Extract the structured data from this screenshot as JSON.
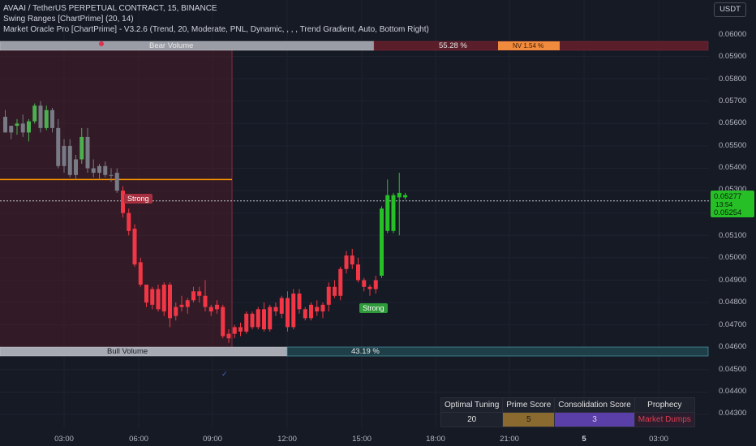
{
  "legend": {
    "symbol_line": "AVAAI / TetherUS PERPETUAL CONTRACT, 15, BINANCE",
    "indicator1": "Swing Ranges [ChartPrime] (20, 14)",
    "indicator2": "Market Oracle Pro [ChartPrime] - V3.2.6 (Trend, 20, Moderate, PNL, Dynamic, , , , Trend Gradient, Auto, Bottom Right)"
  },
  "currency_button": "USDT",
  "price_axis": {
    "labels": [
      "0.06000",
      "0.05900",
      "0.05800",
      "0.05700",
      "0.05600",
      "0.05500",
      "0.05400",
      "0.05300",
      "0.05100",
      "0.05000",
      "0.04900",
      "0.04800",
      "0.04700",
      "0.04600",
      "0.04500",
      "0.04400",
      "0.04300"
    ]
  },
  "current_price": {
    "price": "0.05277",
    "countdown": "13:54",
    "low_label": "0.05254"
  },
  "time_axis": {
    "labels": [
      {
        "text": "03:00",
        "bold": false
      },
      {
        "text": "06:00",
        "bold": false
      },
      {
        "text": "09:00",
        "bold": false
      },
      {
        "text": "12:00",
        "bold": false
      },
      {
        "text": "15:00",
        "bold": false
      },
      {
        "text": "18:00",
        "bold": false
      },
      {
        "text": "21:00",
        "bold": false
      },
      {
        "text": "5",
        "bold": true
      },
      {
        "text": "03:00",
        "bold": false
      }
    ]
  },
  "volume_bars": {
    "bear_label": "Bear Volume",
    "bear_pct": "55.28 %",
    "nv_label": "NV 1.54 %",
    "bull_label": "Bull Volume",
    "bull_pct": "43.19 %"
  },
  "signals": {
    "bear_strong": "Strong",
    "bull_strong": "Strong"
  },
  "info_table": {
    "headers": [
      "Optimal Tuning",
      "Prime Score",
      "Consolidation  Score",
      "Prophecy"
    ],
    "values": [
      "20",
      "5",
      "3",
      "Market Dumps"
    ]
  },
  "colors": {
    "bull": "#4caf50",
    "bear": "#f23645",
    "neutral": "#787b86",
    "bright_green": "#26c026",
    "bright_red": "#e8243c",
    "orange_line": "#ff9800"
  },
  "chart_data": {
    "type": "candlestick",
    "candles": [
      {
        "o": 0.0563,
        "h": 0.0566,
        "l": 0.0556,
        "c": 0.0556,
        "col": "neutral"
      },
      {
        "o": 0.0556,
        "h": 0.0559,
        "l": 0.0553,
        "c": 0.0559,
        "col": "neutral"
      },
      {
        "o": 0.0559,
        "h": 0.0562,
        "l": 0.0555,
        "c": 0.056,
        "col": "bull"
      },
      {
        "o": 0.056,
        "h": 0.0564,
        "l": 0.0554,
        "c": 0.0556,
        "col": "neutral"
      },
      {
        "o": 0.0556,
        "h": 0.0562,
        "l": 0.0552,
        "c": 0.0561,
        "col": "bull"
      },
      {
        "o": 0.0561,
        "h": 0.0569,
        "l": 0.056,
        "c": 0.0568,
        "col": "bull"
      },
      {
        "o": 0.0568,
        "h": 0.057,
        "l": 0.0556,
        "c": 0.0558,
        "col": "neutral"
      },
      {
        "o": 0.0558,
        "h": 0.0568,
        "l": 0.0557,
        "c": 0.0566,
        "col": "bull"
      },
      {
        "o": 0.0566,
        "h": 0.0567,
        "l": 0.0556,
        "c": 0.0558,
        "col": "neutral"
      },
      {
        "o": 0.0558,
        "h": 0.0562,
        "l": 0.054,
        "c": 0.0541,
        "col": "neutral"
      },
      {
        "o": 0.0541,
        "h": 0.0553,
        "l": 0.0538,
        "c": 0.055,
        "col": "neutral"
      },
      {
        "o": 0.055,
        "h": 0.0553,
        "l": 0.0536,
        "c": 0.0537,
        "col": "neutral"
      },
      {
        "o": 0.0537,
        "h": 0.0546,
        "l": 0.0535,
        "c": 0.0544,
        "col": "neutral"
      },
      {
        "o": 0.0544,
        "h": 0.0558,
        "l": 0.0542,
        "c": 0.0554,
        "col": "bull"
      },
      {
        "o": 0.0554,
        "h": 0.0558,
        "l": 0.0538,
        "c": 0.054,
        "col": "neutral"
      },
      {
        "o": 0.054,
        "h": 0.0544,
        "l": 0.0536,
        "c": 0.0538,
        "col": "neutral"
      },
      {
        "o": 0.0538,
        "h": 0.0542,
        "l": 0.0535,
        "c": 0.0541,
        "col": "neutral"
      },
      {
        "o": 0.0541,
        "h": 0.0543,
        "l": 0.0536,
        "c": 0.0537,
        "col": "neutral"
      },
      {
        "o": 0.0537,
        "h": 0.054,
        "l": 0.0534,
        "c": 0.0537,
        "col": "neutral"
      },
      {
        "o": 0.0538,
        "h": 0.054,
        "l": 0.0529,
        "c": 0.053,
        "col": "neutral"
      },
      {
        "o": 0.053,
        "h": 0.0532,
        "l": 0.0518,
        "c": 0.052,
        "col": "bear"
      },
      {
        "o": 0.052,
        "h": 0.0522,
        "l": 0.051,
        "c": 0.0512,
        "col": "bear"
      },
      {
        "o": 0.0513,
        "h": 0.0515,
        "l": 0.0496,
        "c": 0.0497,
        "col": "bear"
      },
      {
        "o": 0.0498,
        "h": 0.05,
        "l": 0.0487,
        "c": 0.0488,
        "col": "bear"
      },
      {
        "o": 0.0488,
        "h": 0.0488,
        "l": 0.0478,
        "c": 0.048,
        "col": "bear"
      },
      {
        "o": 0.0479,
        "h": 0.0487,
        "l": 0.0477,
        "c": 0.0486,
        "col": "bear"
      },
      {
        "o": 0.0486,
        "h": 0.0488,
        "l": 0.0476,
        "c": 0.0477,
        "col": "bear"
      },
      {
        "o": 0.0476,
        "h": 0.0489,
        "l": 0.0474,
        "c": 0.0488,
        "col": "bear"
      },
      {
        "o": 0.0488,
        "h": 0.0489,
        "l": 0.0469,
        "c": 0.0473,
        "col": "bear"
      },
      {
        "o": 0.0474,
        "h": 0.048,
        "l": 0.0472,
        "c": 0.0478,
        "col": "bear"
      },
      {
        "o": 0.0478,
        "h": 0.0483,
        "l": 0.0476,
        "c": 0.0479,
        "col": "bear"
      },
      {
        "o": 0.0478,
        "h": 0.0482,
        "l": 0.0475,
        "c": 0.0481,
        "col": "bear"
      },
      {
        "o": 0.0481,
        "h": 0.0487,
        "l": 0.048,
        "c": 0.0485,
        "col": "bear"
      },
      {
        "o": 0.0485,
        "h": 0.0487,
        "l": 0.048,
        "c": 0.0483,
        "col": "bear"
      },
      {
        "o": 0.0483,
        "h": 0.049,
        "l": 0.0476,
        "c": 0.0478,
        "col": "bear"
      },
      {
        "o": 0.0478,
        "h": 0.0479,
        "l": 0.0474,
        "c": 0.0476,
        "col": "bear"
      },
      {
        "o": 0.0477,
        "h": 0.0481,
        "l": 0.0475,
        "c": 0.0479,
        "col": "bear"
      },
      {
        "o": 0.0478,
        "h": 0.0479,
        "l": 0.0464,
        "c": 0.0465,
        "col": "bear"
      },
      {
        "o": 0.0464,
        "h": 0.0468,
        "l": 0.0462,
        "c": 0.0466,
        "col": "bear"
      },
      {
        "o": 0.0466,
        "h": 0.047,
        "l": 0.0464,
        "c": 0.0469,
        "col": "bear"
      },
      {
        "o": 0.0469,
        "h": 0.0471,
        "l": 0.0465,
        "c": 0.0467,
        "col": "bear"
      },
      {
        "o": 0.0467,
        "h": 0.0476,
        "l": 0.0466,
        "c": 0.0475,
        "col": "bear"
      },
      {
        "o": 0.0475,
        "h": 0.0476,
        "l": 0.0468,
        "c": 0.0469,
        "col": "bear"
      },
      {
        "o": 0.0469,
        "h": 0.0478,
        "l": 0.0468,
        "c": 0.0477,
        "col": "bear"
      },
      {
        "o": 0.0477,
        "h": 0.048,
        "l": 0.0467,
        "c": 0.0468,
        "col": "bear"
      },
      {
        "o": 0.0468,
        "h": 0.0479,
        "l": 0.0467,
        "c": 0.0478,
        "col": "bear"
      },
      {
        "o": 0.0478,
        "h": 0.048,
        "l": 0.0474,
        "c": 0.0476,
        "col": "bear"
      },
      {
        "o": 0.0475,
        "h": 0.0483,
        "l": 0.0473,
        "c": 0.0482,
        "col": "bear"
      },
      {
        "o": 0.0482,
        "h": 0.0485,
        "l": 0.0467,
        "c": 0.0469,
        "col": "bear"
      },
      {
        "o": 0.0469,
        "h": 0.0486,
        "l": 0.0468,
        "c": 0.0484,
        "col": "bear"
      },
      {
        "o": 0.0484,
        "h": 0.0486,
        "l": 0.0475,
        "c": 0.0477,
        "col": "bear"
      },
      {
        "o": 0.0477,
        "h": 0.0478,
        "l": 0.0472,
        "c": 0.0473,
        "col": "bear"
      },
      {
        "o": 0.0473,
        "h": 0.048,
        "l": 0.0472,
        "c": 0.0479,
        "col": "bear"
      },
      {
        "o": 0.0478,
        "h": 0.0481,
        "l": 0.0474,
        "c": 0.0476,
        "col": "bear"
      },
      {
        "o": 0.0476,
        "h": 0.048,
        "l": 0.0473,
        "c": 0.0479,
        "col": "bear"
      },
      {
        "o": 0.0479,
        "h": 0.0489,
        "l": 0.0476,
        "c": 0.0487,
        "col": "bear"
      },
      {
        "o": 0.0487,
        "h": 0.049,
        "l": 0.0482,
        "c": 0.0483,
        "col": "bear"
      },
      {
        "o": 0.0483,
        "h": 0.0496,
        "l": 0.0481,
        "c": 0.0495,
        "col": "bear"
      },
      {
        "o": 0.0495,
        "h": 0.0503,
        "l": 0.0493,
        "c": 0.0501,
        "col": "bear"
      },
      {
        "o": 0.0501,
        "h": 0.0504,
        "l": 0.0495,
        "c": 0.0497,
        "col": "bear"
      },
      {
        "o": 0.0497,
        "h": 0.05,
        "l": 0.0489,
        "c": 0.049,
        "col": "bear"
      },
      {
        "o": 0.049,
        "h": 0.0491,
        "l": 0.0485,
        "c": 0.0487,
        "col": "bear"
      },
      {
        "o": 0.0487,
        "h": 0.0488,
        "l": 0.0483,
        "c": 0.0486,
        "col": "bear"
      },
      {
        "o": 0.0486,
        "h": 0.0492,
        "l": 0.0484,
        "c": 0.049,
        "col": "bear"
      },
      {
        "o": 0.0492,
        "h": 0.0523,
        "l": 0.0491,
        "c": 0.0522,
        "col": "bright_green"
      },
      {
        "o": 0.0512,
        "h": 0.0535,
        "l": 0.0511,
        "c": 0.0528,
        "col": "bright_green"
      },
      {
        "o": 0.0512,
        "h": 0.0529,
        "l": 0.0511,
        "c": 0.0528,
        "col": "bright_green"
      },
      {
        "o": 0.0527,
        "h": 0.0538,
        "l": 0.051,
        "c": 0.0529,
        "col": "bright_green"
      },
      {
        "o": 0.0527,
        "h": 0.0529,
        "l": 0.0526,
        "c": 0.0528,
        "col": "bright_green"
      }
    ],
    "levels": {
      "resistance": 0.0535,
      "current": 0.05254
    },
    "volume_profile": {
      "bear_pct": 55.28,
      "bull_pct": 43.19,
      "nv_pct": 1.54
    }
  }
}
